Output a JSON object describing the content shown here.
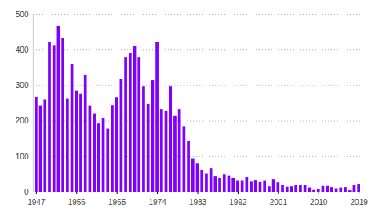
{
  "chart_data": {
    "type": "bar",
    "categories": [
      "1947",
      null,
      null,
      null,
      null,
      null,
      null,
      null,
      null,
      "1956",
      null,
      null,
      null,
      null,
      null,
      null,
      null,
      null,
      "1965",
      null,
      null,
      null,
      null,
      null,
      null,
      null,
      null,
      "1974",
      null,
      null,
      null,
      null,
      null,
      null,
      null,
      null,
      "1983",
      null,
      null,
      null,
      null,
      null,
      null,
      null,
      null,
      "1992",
      null,
      null,
      null,
      null,
      null,
      null,
      null,
      null,
      "2001",
      null,
      null,
      null,
      null,
      null,
      null,
      null,
      null,
      "2010",
      null,
      null,
      null,
      null,
      null,
      null,
      null,
      null,
      "2019"
    ],
    "values": [
      268,
      242,
      260,
      422,
      413,
      467,
      433,
      262,
      360,
      284,
      277,
      330,
      242,
      220,
      192,
      208,
      178,
      243,
      265,
      318,
      378,
      390,
      410,
      378,
      296,
      248,
      314,
      422,
      232,
      228,
      296,
      215,
      232,
      185,
      143,
      94,
      79,
      60,
      52,
      66,
      44,
      40,
      48,
      45,
      40,
      32,
      32,
      42,
      28,
      33,
      27,
      32,
      15,
      35,
      26,
      18,
      14,
      15,
      20,
      19,
      18,
      12,
      5,
      8,
      16,
      16,
      13,
      10,
      12,
      13,
      4,
      18,
      22
    ],
    "color": "#7f00ff",
    "ylim": [
      0,
      500
    ],
    "yticks": [
      0,
      100,
      200,
      300,
      400,
      500
    ],
    "grid": true
  }
}
